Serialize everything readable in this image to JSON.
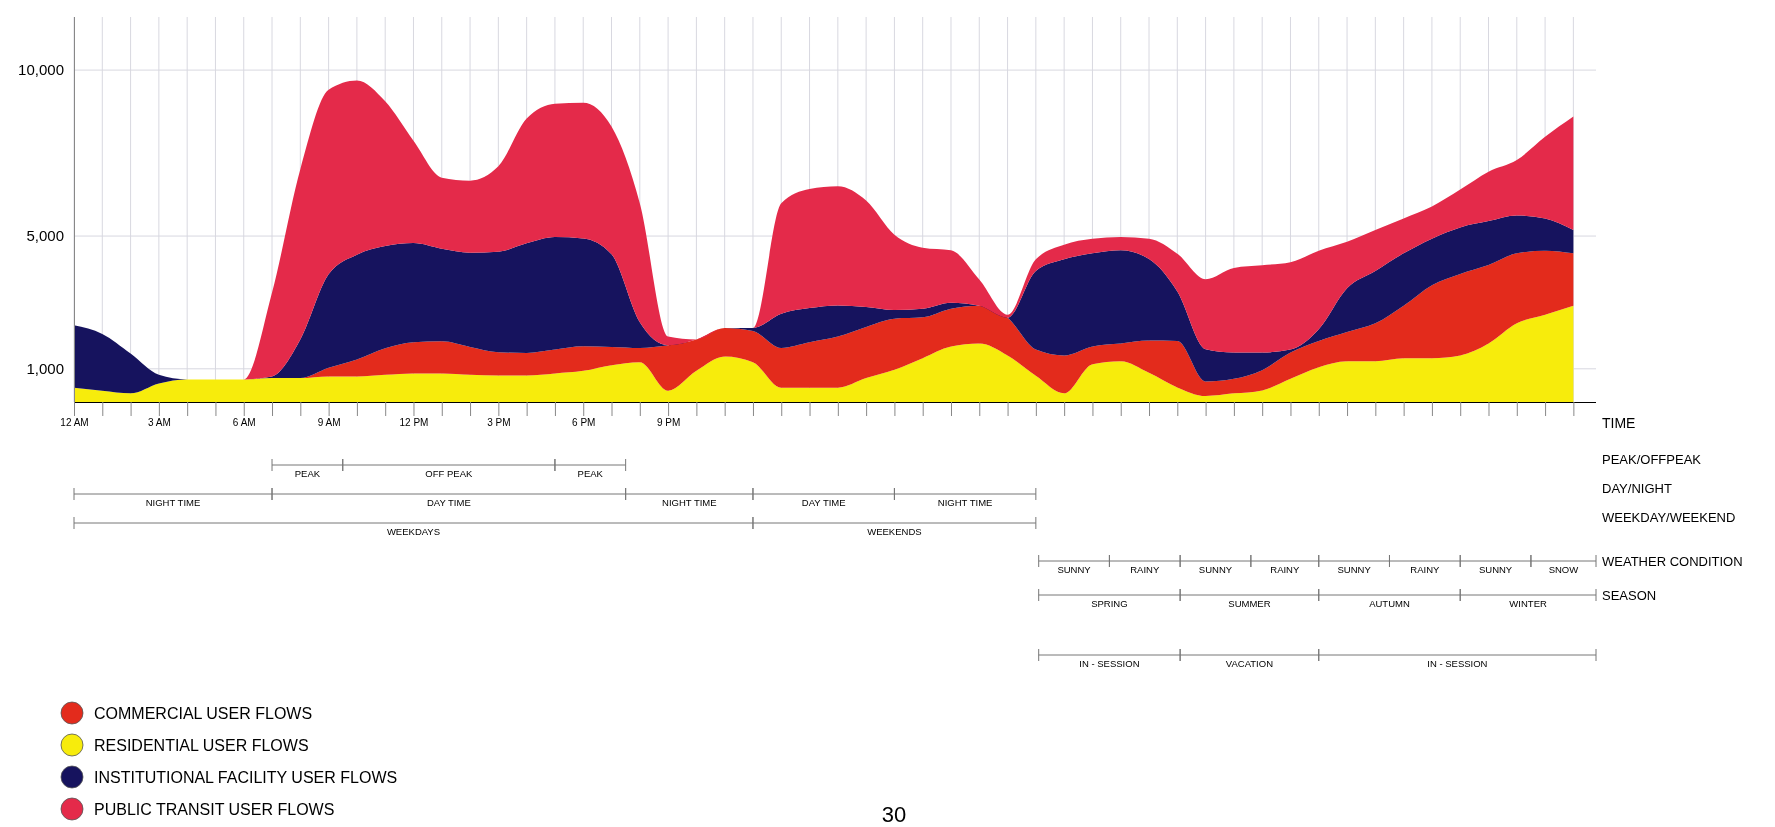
{
  "chart_data": {
    "type": "area",
    "stacked": true,
    "xlabel": "TIME",
    "categories": [
      "12 AM",
      null,
      null,
      "3 AM",
      null,
      null,
      "6 AM",
      null,
      null,
      "9 AM",
      null,
      null,
      "12 PM",
      null,
      null,
      "3 PM",
      null,
      null,
      "6 PM",
      null,
      null,
      "9 PM",
      null,
      null,
      null,
      null,
      null,
      null,
      null,
      null,
      null,
      null,
      null,
      null,
      null,
      null,
      null,
      null,
      null,
      null,
      null,
      null,
      null,
      null,
      null,
      null,
      null,
      null,
      null,
      null,
      null,
      null,
      null,
      null
    ],
    "ylim": [
      0,
      11600
    ],
    "yticks": [
      {
        "value": 1000,
        "label": "1,000"
      },
      {
        "value": 5000,
        "label": "5,000"
      },
      {
        "value": 10000,
        "label": "10,000"
      }
    ],
    "grid": true,
    "legend": "bottom left",
    "series": [
      {
        "name": "RESIDENTIAL USER FLOWS",
        "color": "#f7ec0c",
        "values": [
          430,
          340,
          260,
          560,
          680,
          680,
          680,
          720,
          720,
          770,
          770,
          820,
          860,
          860,
          820,
          800,
          800,
          860,
          940,
          1110,
          1200,
          340,
          940,
          1370,
          1200,
          430,
          430,
          430,
          720,
          970,
          1320,
          1670,
          1760,
          1400,
          790,
          260,
          1140,
          1230,
          880,
          440,
          180,
          260,
          350,
          700,
          1050,
          1230,
          1230,
          1320,
          1320,
          1400,
          1760,
          2370,
          2630,
          2900
        ]
      },
      {
        "name": "COMMERCIAL USER FLOWS",
        "color": "#e32b1c",
        "values": [
          0,
          0,
          0,
          0,
          0,
          0,
          0,
          0,
          0,
          260,
          510,
          800,
          940,
          970,
          840,
          700,
          680,
          720,
          740,
          550,
          430,
          1370,
          940,
          860,
          940,
          1200,
          1370,
          1540,
          1540,
          1540,
          1230,
          1140,
          1140,
          1140,
          790,
          1140,
          530,
          530,
          970,
          1400,
          440,
          440,
          610,
          790,
          790,
          880,
          1140,
          1580,
          2200,
          2460,
          2370,
          2110,
          1930,
          1580
        ]
      },
      {
        "name": "INSTITUTIONAL FACILITY USER FLOWS",
        "color": "#16135e",
        "values": [
          1880,
          1710,
          1200,
          260,
          0,
          0,
          0,
          50,
          1160,
          2820,
          3160,
          3080,
          2990,
          2790,
          2840,
          3030,
          3300,
          3390,
          3250,
          2790,
          770,
          0,
          0,
          0,
          90,
          1030,
          1030,
          940,
          600,
          260,
          260,
          180,
          0,
          0,
          2370,
          2900,
          2810,
          2810,
          2460,
          1490,
          970,
          790,
          530,
          90,
          350,
          1320,
          1580,
          1580,
          1400,
          1400,
          1320,
          1140,
          970,
          700
        ]
      },
      {
        "name": "PUBLIC TRANSIT USER FLOWS",
        "color": "#e42a4a",
        "values": [
          0,
          0,
          0,
          0,
          0,
          0,
          0,
          2530,
          5130,
          5560,
          5250,
          4360,
          3080,
          2140,
          2170,
          2570,
          3760,
          4020,
          4090,
          3850,
          3590,
          260,
          0,
          0,
          0,
          3330,
          3590,
          3590,
          3210,
          2270,
          1840,
          1580,
          790,
          90,
          350,
          440,
          440,
          400,
          610,
          1140,
          2110,
          2550,
          2630,
          2630,
          2370,
          1400,
          1230,
          1050,
          970,
          1140,
          1490,
          1670,
          2460,
          3420
        ]
      }
    ],
    "annotations": [
      "PEAK/OFFPEAK",
      "DAY/NIGHT",
      "WEEKDAY/WEEKEND",
      "WEATHER CONDITION",
      "SEASON",
      "PEAK",
      "OFF PEAK",
      "PEAK",
      "NIGHT TIME",
      "DAY TIME",
      "NIGHT TIME",
      "DAY TIME",
      "NIGHT TIME",
      "WEEKDAYS",
      "WEEKENDS",
      "SUNNY",
      "RAINY",
      "SUNNY",
      "RAINY",
      "SUNNY",
      "RAINY",
      "SUNNY",
      "SNOW",
      "SPRING",
      "SUMMER",
      "AUTUMN",
      "WINTER",
      "IN - SESSION",
      "VACATION",
      "IN - SESSION",
      "30"
    ]
  }
}
